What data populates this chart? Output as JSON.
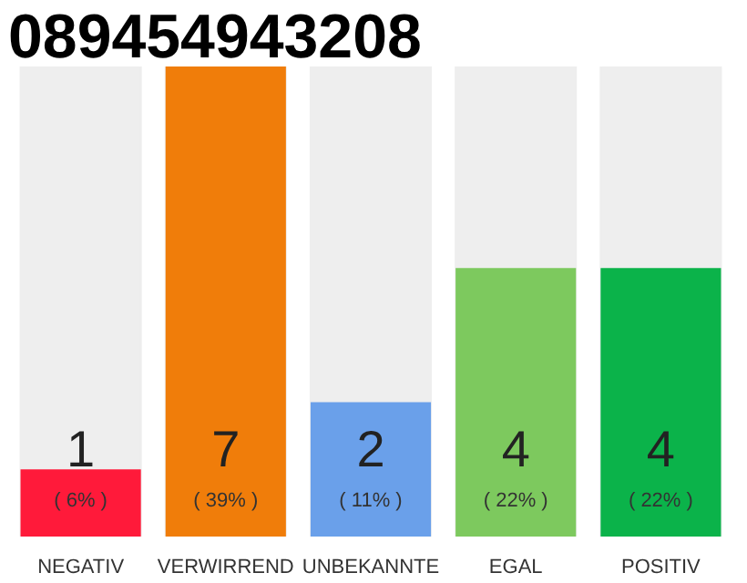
{
  "chart_data": {
    "type": "bar",
    "title": "089454943208",
    "categories": [
      "NEGATIV",
      "VERWIRREND",
      "UNBEKANNTE",
      "EGAL",
      "POSITIV"
    ],
    "values": [
      1,
      7,
      2,
      4,
      4
    ],
    "colors": [
      "#ff1a3a",
      "#f07d0a",
      "#6aa0ea",
      "#7dc95e",
      "#0bb34a"
    ],
    "data_labels": true,
    "annotations": [
      "( 6% )",
      "( 39% )",
      "( 11% )",
      "( 22% )",
      "( 22% )"
    ],
    "grid": false
  }
}
